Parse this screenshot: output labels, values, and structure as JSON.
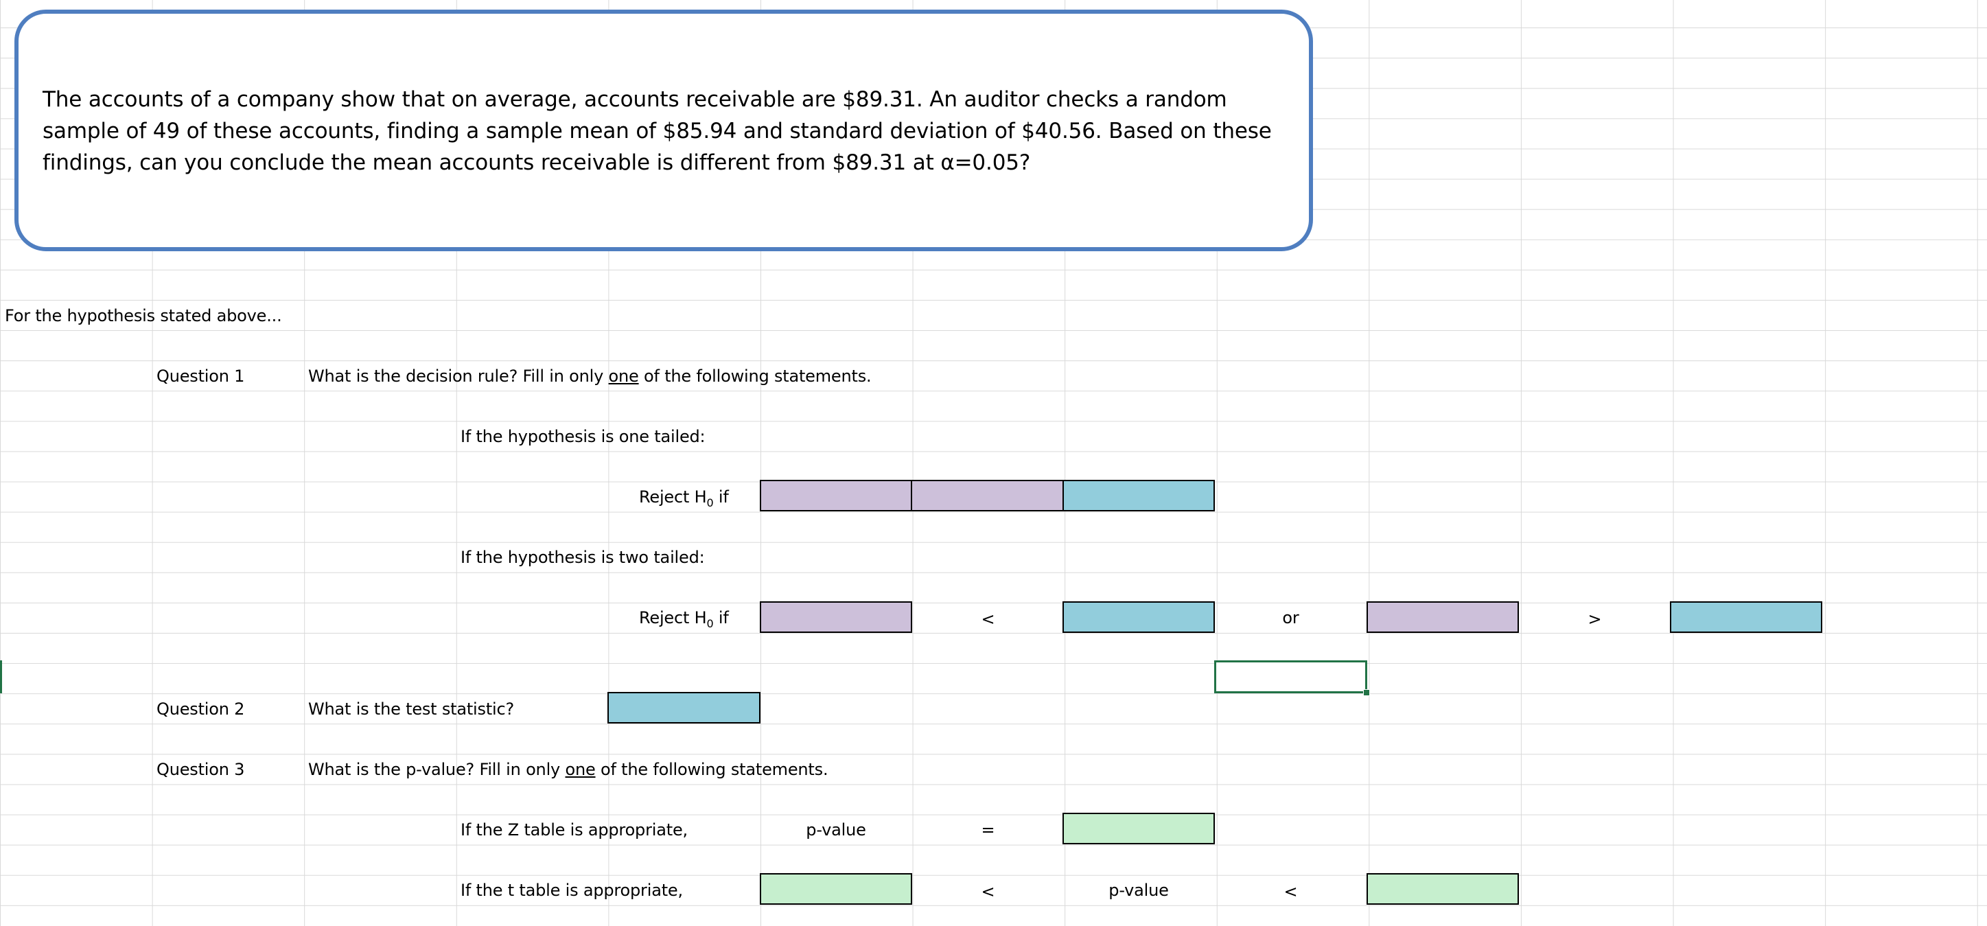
{
  "problem": {
    "text": "The accounts of a company show that on average, accounts receivable are $89.31.  An auditor checks a random sample of 49 of these accounts, finding a sample mean of $85.94 and standard deviation of $40.56.  Based on these findings, can you conclude the mean accounts receivable is different from $89.31 at α=0.05?"
  },
  "intro": "For the hypothesis stated above...",
  "q1": {
    "label": "Question 1",
    "prompt_before": "What is the decision rule?   Fill in only ",
    "prompt_underline": "one",
    "prompt_after": " of the following statements.",
    "one_tailed_label": "If the hypothesis is one tailed:",
    "two_tailed_label": "If the hypothesis is two tailed:",
    "reject_prefix": "Reject H",
    "reject_sub": "0",
    "reject_suffix": " if",
    "less_than": "<",
    "or": "or",
    "greater_than": ">"
  },
  "q2": {
    "label": "Question 2",
    "prompt": "What is the test statistic?"
  },
  "q3": {
    "label": "Question 3",
    "prompt_before": "What is the p-value?  Fill in only ",
    "prompt_underline": "one",
    "prompt_after": " of the following statements.",
    "z_label": "If the Z table is appropriate,",
    "t_label": "If the t table is appropriate,",
    "p_value": "p-value",
    "equals": "=",
    "less_than": "<"
  },
  "colors": {
    "purple_input": "#cdc0da",
    "blue_input": "#92cddc",
    "green_input": "#c6efce",
    "textbox_border": "#4f7ec0",
    "selection": "#217346"
  }
}
